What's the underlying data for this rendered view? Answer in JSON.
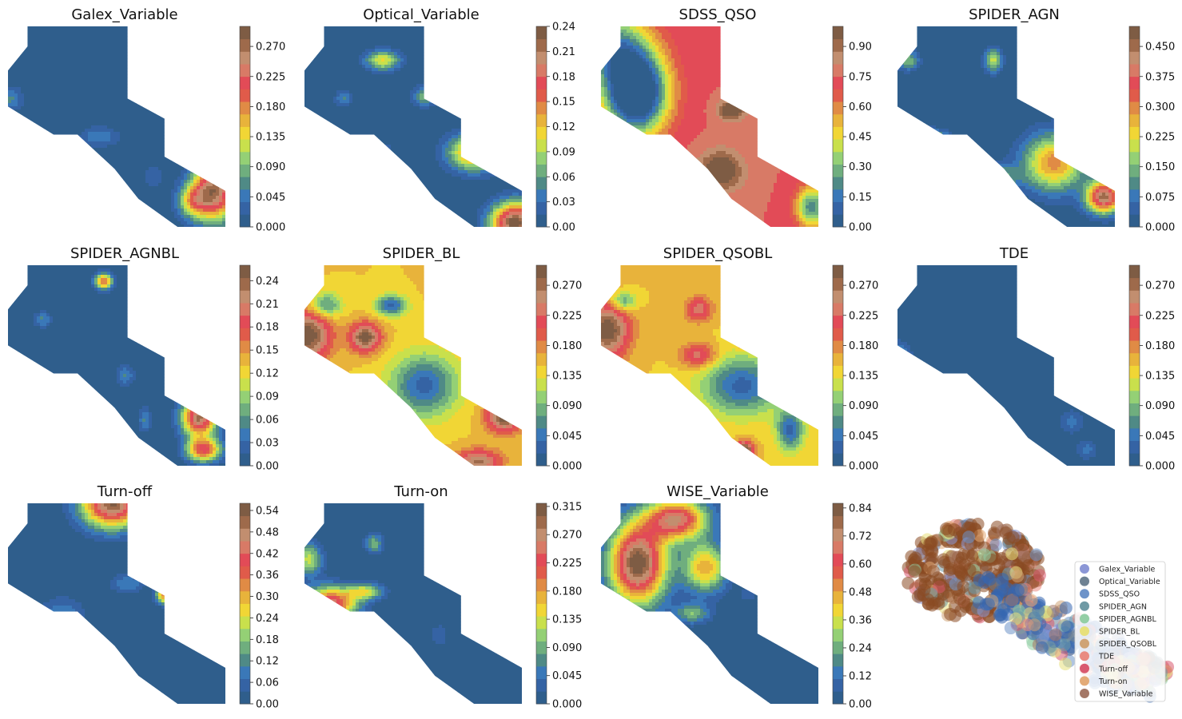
{
  "figure": {
    "colormap": [
      "#2f5e8c",
      "#3563a4",
      "#3a78b8",
      "#4f8a86",
      "#6fae7e",
      "#94d075",
      "#c9e04c",
      "#f1d635",
      "#e8b33b",
      "#e08b45",
      "#e05b4a",
      "#e24b57",
      "#d87a66",
      "#c28e6f",
      "#9e6a4b",
      "#7e5c44"
    ],
    "panels": [
      {
        "title": "Galex_Variable",
        "ticks": [
          "0.000",
          "0.045",
          "0.090",
          "0.135",
          "0.180",
          "0.225",
          "0.270"
        ],
        "tmax": 0.3,
        "blobs": [
          [
            0.95,
            0.82,
            0.1,
            0.15,
            0.9
          ],
          [
            0.85,
            0.87,
            0.07,
            0.08,
            0.4
          ],
          [
            0.42,
            0.55,
            0.09,
            0.05,
            0.18
          ],
          [
            0.01,
            0.36,
            0.06,
            0.06,
            0.2
          ],
          [
            0.67,
            0.75,
            0.05,
            0.06,
            0.12
          ]
        ]
      },
      {
        "title": "Optical_Variable",
        "ticks": [
          "0.00",
          "0.03",
          "0.06",
          "0.09",
          "0.12",
          "0.15",
          "0.18",
          "0.21",
          "0.24"
        ],
        "tmax": 0.24,
        "blobs": [
          [
            0.97,
            0.98,
            0.11,
            0.1,
            1.0
          ],
          [
            0.78,
            0.63,
            0.12,
            0.09,
            0.6
          ],
          [
            0.36,
            0.17,
            0.08,
            0.05,
            0.45
          ],
          [
            0.55,
            0.35,
            0.05,
            0.05,
            0.3
          ],
          [
            0.18,
            0.36,
            0.04,
            0.04,
            0.2
          ],
          [
            0.36,
            0.62,
            0.04,
            0.04,
            0.15
          ]
        ]
      },
      {
        "title": "SDSS_QSO",
        "ticks": [
          "0.00",
          "0.15",
          "0.30",
          "0.45",
          "0.60",
          "0.75",
          "0.90"
        ],
        "tmax": 1.0,
        "base": 0.75,
        "blobs": [
          [
            0.16,
            0.33,
            0.14,
            0.2,
            -1.0
          ],
          [
            0.05,
            0.1,
            0.16,
            0.18,
            -0.5
          ],
          [
            0.55,
            0.72,
            0.1,
            0.1,
            0.3
          ],
          [
            0.6,
            0.42,
            0.06,
            0.05,
            0.3
          ],
          [
            0.97,
            0.9,
            0.07,
            0.1,
            -0.55
          ]
        ]
      },
      {
        "title": "SPIDER_AGN",
        "ticks": [
          "0.000",
          "0.075",
          "0.150",
          "0.225",
          "0.300",
          "0.375",
          "0.450"
        ],
        "tmax": 0.5,
        "blobs": [
          [
            0.72,
            0.68,
            0.14,
            0.14,
            0.6
          ],
          [
            0.95,
            0.85,
            0.08,
            0.08,
            0.9
          ],
          [
            0.15,
            0.58,
            0.08,
            0.05,
            0.8
          ],
          [
            0.44,
            0.17,
            0.04,
            0.06,
            0.4
          ],
          [
            0.66,
            0.31,
            0.04,
            0.06,
            0.35
          ],
          [
            0.05,
            0.17,
            0.05,
            0.05,
            0.3
          ],
          [
            0.45,
            0.75,
            0.1,
            0.06,
            0.3
          ]
        ]
      },
      {
        "title": "SPIDER_AGNBL",
        "ticks": [
          "0.00",
          "0.03",
          "0.06",
          "0.09",
          "0.12",
          "0.15",
          "0.18",
          "0.21",
          "0.24"
        ],
        "tmax": 0.26,
        "blobs": [
          [
            0.88,
            0.76,
            0.08,
            0.09,
            0.9
          ],
          [
            0.9,
            0.92,
            0.08,
            0.06,
            0.7
          ],
          [
            0.44,
            0.08,
            0.04,
            0.04,
            0.65
          ],
          [
            0.16,
            0.27,
            0.04,
            0.04,
            0.2
          ],
          [
            0.54,
            0.55,
            0.04,
            0.05,
            0.2
          ],
          [
            0.63,
            0.77,
            0.03,
            0.06,
            0.2
          ]
        ]
      },
      {
        "title": "SPIDER_BL",
        "ticks": [
          "0.000",
          "0.045",
          "0.090",
          "0.135",
          "0.180",
          "0.225",
          "0.270"
        ],
        "tmax": 0.3,
        "base": 0.5,
        "blobs": [
          [
            0.02,
            0.35,
            0.1,
            0.12,
            0.5
          ],
          [
            0.28,
            0.36,
            0.07,
            0.07,
            0.5
          ],
          [
            0.68,
            0.1,
            0.07,
            0.06,
            0.3
          ],
          [
            0.4,
            0.2,
            0.07,
            0.05,
            -0.4
          ],
          [
            0.55,
            0.6,
            0.15,
            0.15,
            -0.4
          ],
          [
            0.92,
            0.75,
            0.08,
            0.08,
            0.5
          ],
          [
            0.8,
            0.98,
            0.1,
            0.06,
            0.4
          ],
          [
            0.1,
            0.2,
            0.07,
            0.06,
            -0.3
          ]
        ]
      },
      {
        "title": "SPIDER_QSOBL",
        "ticks": [
          "0.000",
          "0.045",
          "0.090",
          "0.135",
          "0.180",
          "0.225",
          "0.270"
        ],
        "tmax": 0.3,
        "base": 0.5,
        "blobs": [
          [
            0.03,
            0.32,
            0.1,
            0.14,
            0.5
          ],
          [
            0.45,
            0.22,
            0.06,
            0.06,
            0.3
          ],
          [
            0.68,
            0.36,
            0.05,
            0.05,
            0.3
          ],
          [
            0.45,
            0.45,
            0.08,
            0.06,
            0.3
          ],
          [
            0.65,
            0.6,
            0.18,
            0.14,
            -0.4
          ],
          [
            0.87,
            0.82,
            0.06,
            0.1,
            -0.4
          ],
          [
            0.66,
            0.93,
            0.04,
            0.05,
            0.6
          ],
          [
            0.1,
            0.18,
            0.06,
            0.05,
            -0.3
          ]
        ]
      },
      {
        "title": "TDE",
        "ticks": [
          "0.000",
          "0.045",
          "0.090",
          "0.135",
          "0.180",
          "0.225",
          "0.270"
        ],
        "tmax": 0.3,
        "blobs": [
          [
            0.0,
            0.45,
            0.06,
            0.07,
            0.22
          ],
          [
            0.8,
            0.78,
            0.06,
            0.06,
            0.15
          ],
          [
            0.87,
            0.92,
            0.05,
            0.05,
            0.15
          ]
        ]
      },
      {
        "title": "Turn-off",
        "ticks": [
          "0.00",
          "0.06",
          "0.12",
          "0.18",
          "0.24",
          "0.30",
          "0.36",
          "0.42",
          "0.48",
          "0.54"
        ],
        "tmax": 0.56,
        "blobs": [
          [
            0.48,
            0.0,
            0.14,
            0.12,
            0.95
          ],
          [
            0.72,
            0.46,
            0.04,
            0.04,
            0.6
          ],
          [
            0.25,
            0.55,
            0.1,
            0.08,
            0.18
          ],
          [
            0.55,
            0.4,
            0.08,
            0.05,
            0.18
          ]
        ]
      },
      {
        "title": "Turn-on",
        "ticks": [
          "0.000",
          "0.045",
          "0.090",
          "0.135",
          "0.180",
          "0.225",
          "0.270",
          "0.315"
        ],
        "tmax": 0.32,
        "blobs": [
          [
            0.12,
            0.5,
            0.12,
            0.08,
            0.8
          ],
          [
            0.02,
            0.28,
            0.06,
            0.08,
            0.4
          ],
          [
            0.32,
            0.2,
            0.04,
            0.05,
            0.3
          ],
          [
            0.28,
            0.44,
            0.08,
            0.04,
            0.4
          ],
          [
            0.62,
            0.66,
            0.04,
            0.06,
            0.12
          ]
        ]
      },
      {
        "title": "WISE_Variable",
        "ticks": [
          "0.00",
          "0.12",
          "0.24",
          "0.36",
          "0.48",
          "0.60",
          "0.72",
          "0.84"
        ],
        "tmax": 0.86,
        "blobs": [
          [
            0.17,
            0.3,
            0.13,
            0.2,
            1.0
          ],
          [
            0.35,
            0.08,
            0.14,
            0.1,
            0.8
          ],
          [
            0.48,
            0.32,
            0.1,
            0.12,
            0.55
          ],
          [
            0.42,
            0.55,
            0.08,
            0.05,
            0.3
          ],
          [
            0.68,
            0.45,
            0.04,
            0.04,
            0.12
          ]
        ]
      }
    ],
    "legend": [
      {
        "label": "Galex_Variable",
        "color": "#8c97d6"
      },
      {
        "label": "Optical_Variable",
        "color": "#6f8293"
      },
      {
        "label": "SDSS_QSO",
        "color": "#6d93c9"
      },
      {
        "label": "SPIDER_AGN",
        "color": "#6f9aa5"
      },
      {
        "label": "SPIDER_AGNBL",
        "color": "#94cfa6"
      },
      {
        "label": "SPIDER_BL",
        "color": "#e7e07c"
      },
      {
        "label": "SPIDER_QSOBL",
        "color": "#cfa476"
      },
      {
        "label": "TDE",
        "color": "#e98b82"
      },
      {
        "label": "Turn-off",
        "color": "#d95a70"
      },
      {
        "label": "Turn-on",
        "color": "#e3ab78"
      },
      {
        "label": "WISE_Variable",
        "color": "#a47766"
      }
    ]
  }
}
